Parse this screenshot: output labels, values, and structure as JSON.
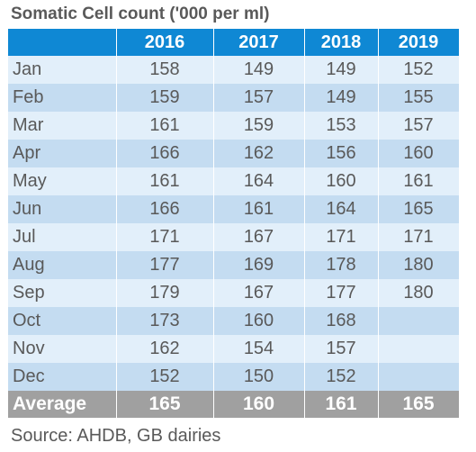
{
  "title": "Somatic Cell count ('000 per ml)",
  "source": "Source: AHDB, GB dairies",
  "colors": {
    "header_bg": "#0f88d4",
    "row_light": "#e2effa",
    "row_dark": "#c4dcf1",
    "footer_bg": "#a0a0a0",
    "text": "#595959"
  },
  "chart_data": {
    "type": "table",
    "title": "Somatic Cell count ('000 per ml)",
    "columns": [
      "2016",
      "2017",
      "2018",
      "2019"
    ],
    "rows": [
      {
        "month": "Jan",
        "values": [
          "158",
          "149",
          "149",
          "152"
        ]
      },
      {
        "month": "Feb",
        "values": [
          "159",
          "157",
          "149",
          "155"
        ]
      },
      {
        "month": "Mar",
        "values": [
          "161",
          "159",
          "153",
          "157"
        ]
      },
      {
        "month": "Apr",
        "values": [
          "166",
          "162",
          "156",
          "160"
        ]
      },
      {
        "month": "May",
        "values": [
          "161",
          "164",
          "160",
          "161"
        ]
      },
      {
        "month": "Jun",
        "values": [
          "166",
          "161",
          "164",
          "165"
        ]
      },
      {
        "month": "Jul",
        "values": [
          "171",
          "167",
          "171",
          "171"
        ]
      },
      {
        "month": "Aug",
        "values": [
          "177",
          "169",
          "178",
          "180"
        ]
      },
      {
        "month": "Sep",
        "values": [
          "179",
          "167",
          "177",
          "180"
        ]
      },
      {
        "month": "Oct",
        "values": [
          "173",
          "160",
          "168",
          ""
        ]
      },
      {
        "month": "Nov",
        "values": [
          "162",
          "154",
          "157",
          ""
        ]
      },
      {
        "month": "Dec",
        "values": [
          "152",
          "150",
          "152",
          ""
        ]
      }
    ],
    "footer": {
      "label": "Average",
      "values": [
        "165",
        "160",
        "161",
        "165"
      ]
    }
  }
}
